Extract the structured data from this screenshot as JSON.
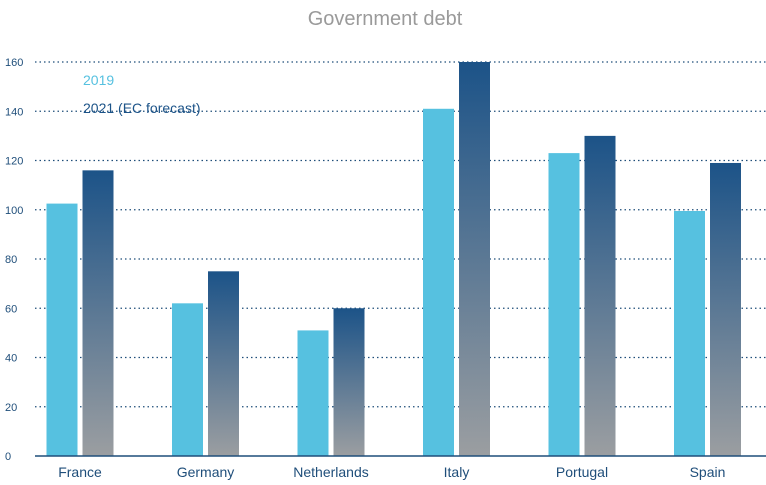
{
  "chart_data": {
    "type": "bar",
    "title": "Government debt",
    "xlabel": "",
    "ylabel": "",
    "categories": [
      "France",
      "Germany",
      "Netherlands",
      "Italy",
      "Portugal",
      "Spain"
    ],
    "series": [
      {
        "name": "2019",
        "values": [
          102.5,
          62,
          51,
          141,
          123,
          99.5
        ],
        "color": "#56c1e0"
      },
      {
        "name": "2021 (EC forecast)",
        "values": [
          116,
          75,
          60,
          160,
          130,
          119
        ],
        "color": "#1c5388",
        "gradient_bottom_color": "#9b9ea1"
      }
    ],
    "ylim": [
      0,
      160
    ],
    "yticks": [
      0,
      20,
      40,
      60,
      80,
      100,
      120,
      140,
      160
    ],
    "grid": true,
    "grid_style": "dotted",
    "legend_position": "top-left",
    "colors": {
      "title": "#9a9a9a",
      "axis_text": "#1f4e7a",
      "grid": "#1f4e7a"
    }
  }
}
